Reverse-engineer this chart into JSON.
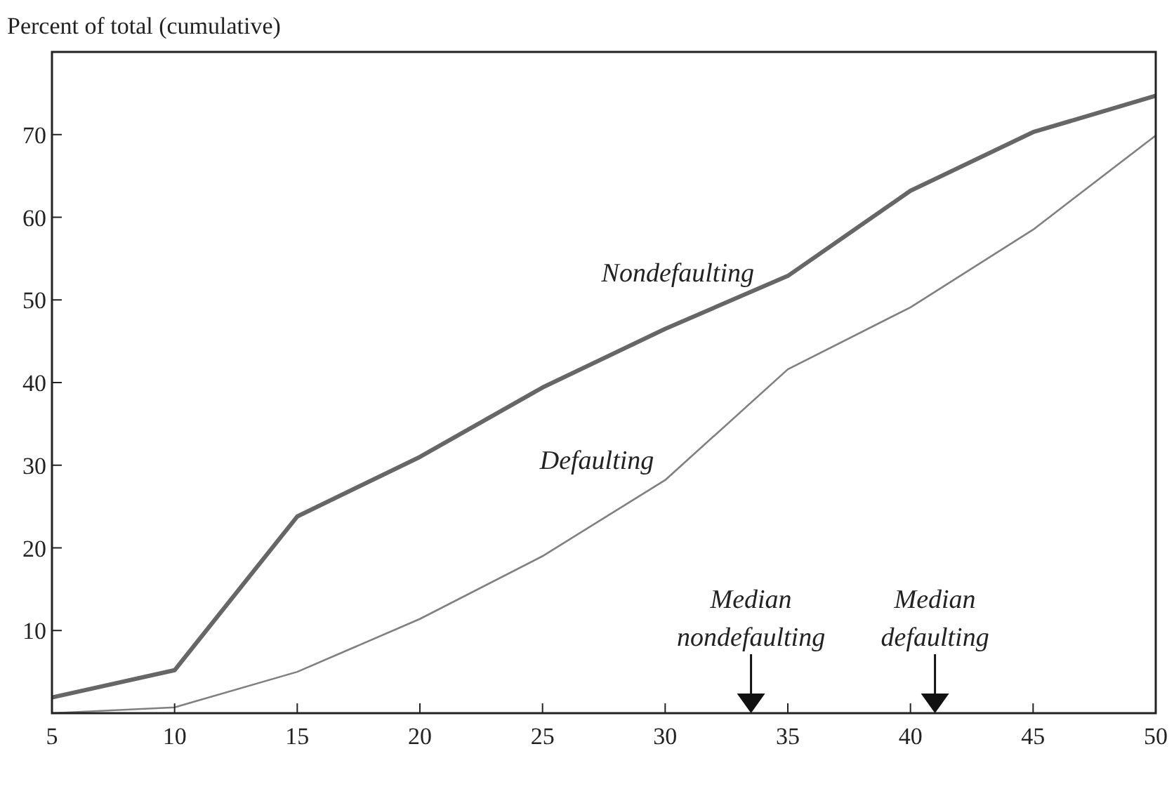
{
  "chart_data": {
    "type": "line",
    "ylabel": "Percent of total (cumulative)",
    "x": [
      5,
      10,
      15,
      20,
      25,
      30,
      35,
      40,
      45,
      50
    ],
    "xlim": [
      5,
      50
    ],
    "xticks": [
      5,
      10,
      15,
      20,
      25,
      30,
      35,
      40,
      45,
      50
    ],
    "ylim": [
      0,
      80
    ],
    "yticks": [
      10,
      20,
      30,
      40,
      50,
      60,
      70
    ],
    "grid": false,
    "legend": false,
    "marker": "none",
    "line_style": "solid",
    "series": [
      {
        "name": "Nondefaulting",
        "color": "#666666",
        "values": [
          1.9,
          5.2,
          23.8,
          31,
          39.4,
          46.5,
          52.9,
          63.2,
          70.3,
          74.7
        ]
      },
      {
        "name": "Defaulting",
        "color": "#808080",
        "values": [
          0,
          0.7,
          5,
          11.4,
          19,
          28.2,
          41.6,
          49.1,
          58.5,
          69.9
        ]
      }
    ],
    "ref_lines": [
      {
        "axis": "x",
        "value": 33.5,
        "label": "Median nondefaulting"
      },
      {
        "axis": "x",
        "value": 41,
        "label": "Median defaulting"
      }
    ]
  }
}
